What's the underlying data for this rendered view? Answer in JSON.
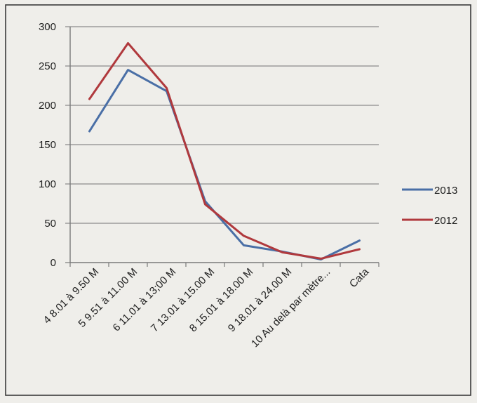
{
  "chart_data": {
    "type": "line",
    "categories": [
      "4 8.01 à 9.50 M",
      "5 9.51 à 11.00 M",
      "6 11.01 à 13;00 M",
      "7 13.01 à 15.00 M",
      "8 15.01 à 18.00 M",
      "9 18.01 à 24.00 M",
      "10 Au delà par mètre...",
      "Cata"
    ],
    "series": [
      {
        "name": "2013",
        "values": [
          167,
          245,
          218,
          78,
          22,
          14,
          4,
          28
        ],
        "color": "#4a6fa6"
      },
      {
        "name": "2012",
        "values": [
          208,
          279,
          222,
          74,
          34,
          13,
          5,
          17
        ],
        "color": "#b0393d"
      }
    ],
    "ylim": [
      0,
      300
    ],
    "yticks": [
      0,
      50,
      100,
      150,
      200,
      250,
      300
    ],
    "grid": true,
    "legend": "right"
  }
}
